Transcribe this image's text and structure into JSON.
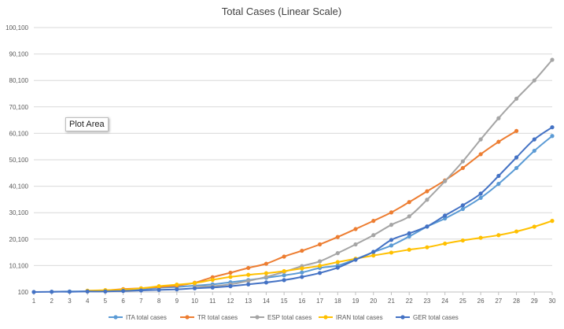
{
  "chart_data": {
    "type": "line",
    "title": "Total Cases (Linear Scale)",
    "xlabel": "",
    "ylabel": "",
    "x": [
      1,
      2,
      3,
      4,
      5,
      6,
      7,
      8,
      9,
      10,
      11,
      12,
      13,
      14,
      15,
      16,
      17,
      18,
      19,
      20,
      21,
      22,
      23,
      24,
      25,
      26,
      27,
      28,
      29,
      30
    ],
    "xlim": [
      1,
      30
    ],
    "ylim": [
      100,
      100100
    ],
    "y_ticks": [
      "100",
      "10,100",
      "20,100",
      "30,100",
      "40,100",
      "50,100",
      "60,100",
      "70,100",
      "80,100",
      "90,100",
      "100,100"
    ],
    "y_tick_values": [
      100,
      10100,
      20100,
      30100,
      40100,
      50100,
      60100,
      70100,
      80100,
      90100,
      100100
    ],
    "grid": "horizontal",
    "legend_position": "bottom",
    "series": [
      {
        "name": "ITA total cases",
        "color": "#5b9bd5",
        "x": [
          2,
          3,
          4,
          5,
          6,
          7,
          8,
          9,
          10,
          11,
          12,
          13,
          14,
          15,
          16,
          17,
          18,
          19,
          20,
          21,
          22,
          23,
          24,
          25,
          26,
          27,
          28,
          29,
          30
        ],
        "values": [
          200,
          300,
          400,
          700,
          800,
          1100,
          1700,
          2000,
          2500,
          3000,
          3800,
          4600,
          5500,
          6400,
          7500,
          9200,
          10100,
          12500,
          15200,
          17700,
          21100,
          24800,
          27900,
          31500,
          35700,
          41000,
          47000,
          53500,
          59100
        ]
      },
      {
        "name": "TR total cases",
        "color": "#ed7d31",
        "x": [
          4,
          5,
          6,
          7,
          8,
          9,
          10,
          11,
          12,
          13,
          14,
          15,
          16,
          17,
          18,
          19,
          20,
          21,
          22,
          23,
          24,
          25,
          26,
          27,
          28
        ],
        "values": [
          400,
          700,
          1200,
          1500,
          2000,
          2500,
          3600,
          5700,
          7400,
          9200,
          10800,
          13500,
          15700,
          18100,
          20900,
          23900,
          27000,
          30200,
          34100,
          38200,
          42300,
          47000,
          52200,
          56900,
          61000
        ]
      },
      {
        "name": "ESP total cases",
        "color": "#a5a5a5",
        "x": [
          10,
          11,
          12,
          13,
          14,
          15,
          16,
          17,
          18,
          19,
          20,
          21,
          22,
          23,
          24,
          25,
          26,
          27,
          28,
          29,
          30
        ],
        "values": [
          2200,
          2300,
          3000,
          4300,
          5800,
          7700,
          9900,
          11700,
          14800,
          18100,
          21600,
          25500,
          28700,
          35000,
          42000,
          49500,
          57800,
          65800,
          73200,
          80100,
          87900
        ]
      },
      {
        "name": "IRAN total cases",
        "color": "#ffc000",
        "x": [
          4,
          5,
          6,
          7,
          8,
          9,
          10,
          11,
          12,
          13,
          14,
          15,
          16,
          17,
          18,
          19,
          20,
          21,
          22,
          23,
          24,
          25,
          26,
          27,
          28,
          29,
          30
        ],
        "values": [
          600,
          800,
          1000,
          1500,
          2300,
          2900,
          3500,
          4700,
          5800,
          6600,
          7200,
          8000,
          9000,
          10000,
          11400,
          12700,
          13900,
          15000,
          16100,
          17000,
          18400,
          19600,
          20600,
          21600,
          23000,
          24800,
          27000
        ]
      },
      {
        "name": "GER total cases",
        "color": "#4472c4",
        "x": [
          1,
          2,
          3,
          4,
          5,
          6,
          7,
          8,
          9,
          10,
          11,
          12,
          13,
          14,
          15,
          16,
          17,
          18,
          19,
          20,
          21,
          22,
          23,
          24,
          25,
          26,
          27,
          28,
          29,
          30
        ],
        "values": [
          100,
          200,
          200,
          300,
          300,
          500,
          700,
          900,
          1100,
          1500,
          1800,
          2300,
          3000,
          3700,
          4600,
          5800,
          7300,
          9300,
          12300,
          15300,
          19800,
          22300,
          24900,
          29000,
          32900,
          37300,
          44000,
          51000,
          57800,
          62400
        ]
      }
    ]
  },
  "tooltip": {
    "label": "Plot Area"
  }
}
